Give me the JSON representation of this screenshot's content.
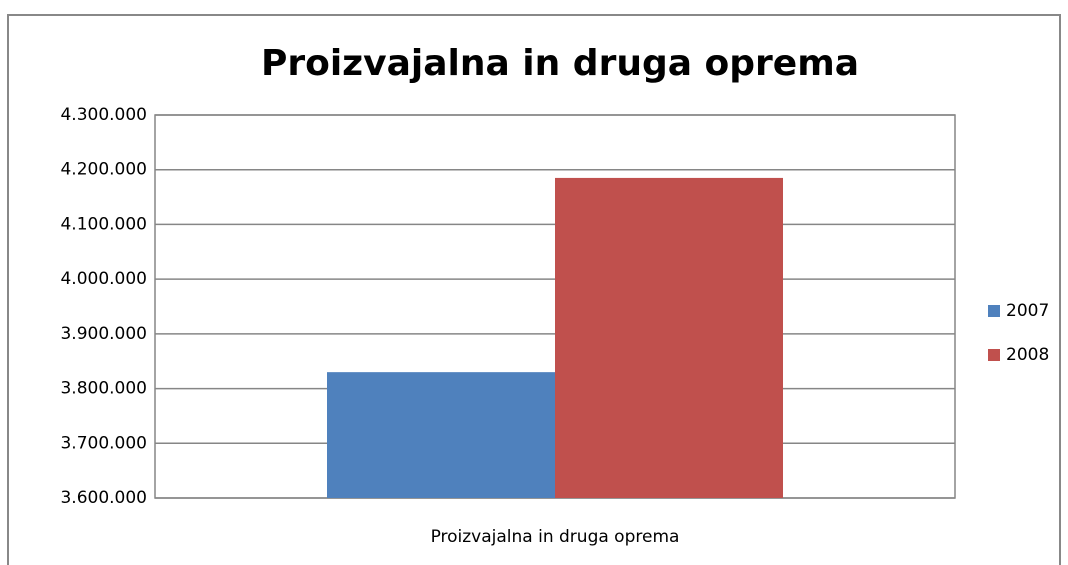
{
  "chart_data": {
    "type": "bar",
    "title": "Proizvajalna in druga oprema",
    "categories": [
      "Proizvajalna in druga oprema"
    ],
    "series": [
      {
        "name": "2007",
        "color": "#4f81bd",
        "values": [
          3830000
        ]
      },
      {
        "name": "2008",
        "color": "#c0504d",
        "values": [
          4185000
        ]
      }
    ],
    "ylim": [
      3600000,
      4300000
    ],
    "yticks": [
      {
        "value": 3600000,
        "label": "3.600.000"
      },
      {
        "value": 3700000,
        "label": "3.700.000"
      },
      {
        "value": 3800000,
        "label": "3.800.000"
      },
      {
        "value": 3900000,
        "label": "3.900.000"
      },
      {
        "value": 4000000,
        "label": "4.000.000"
      },
      {
        "value": 4100000,
        "label": "4.100.000"
      },
      {
        "value": 4200000,
        "label": "4.200.000"
      },
      {
        "value": 4300000,
        "label": "4.300.000"
      }
    ],
    "grid": true,
    "legend": "right"
  }
}
